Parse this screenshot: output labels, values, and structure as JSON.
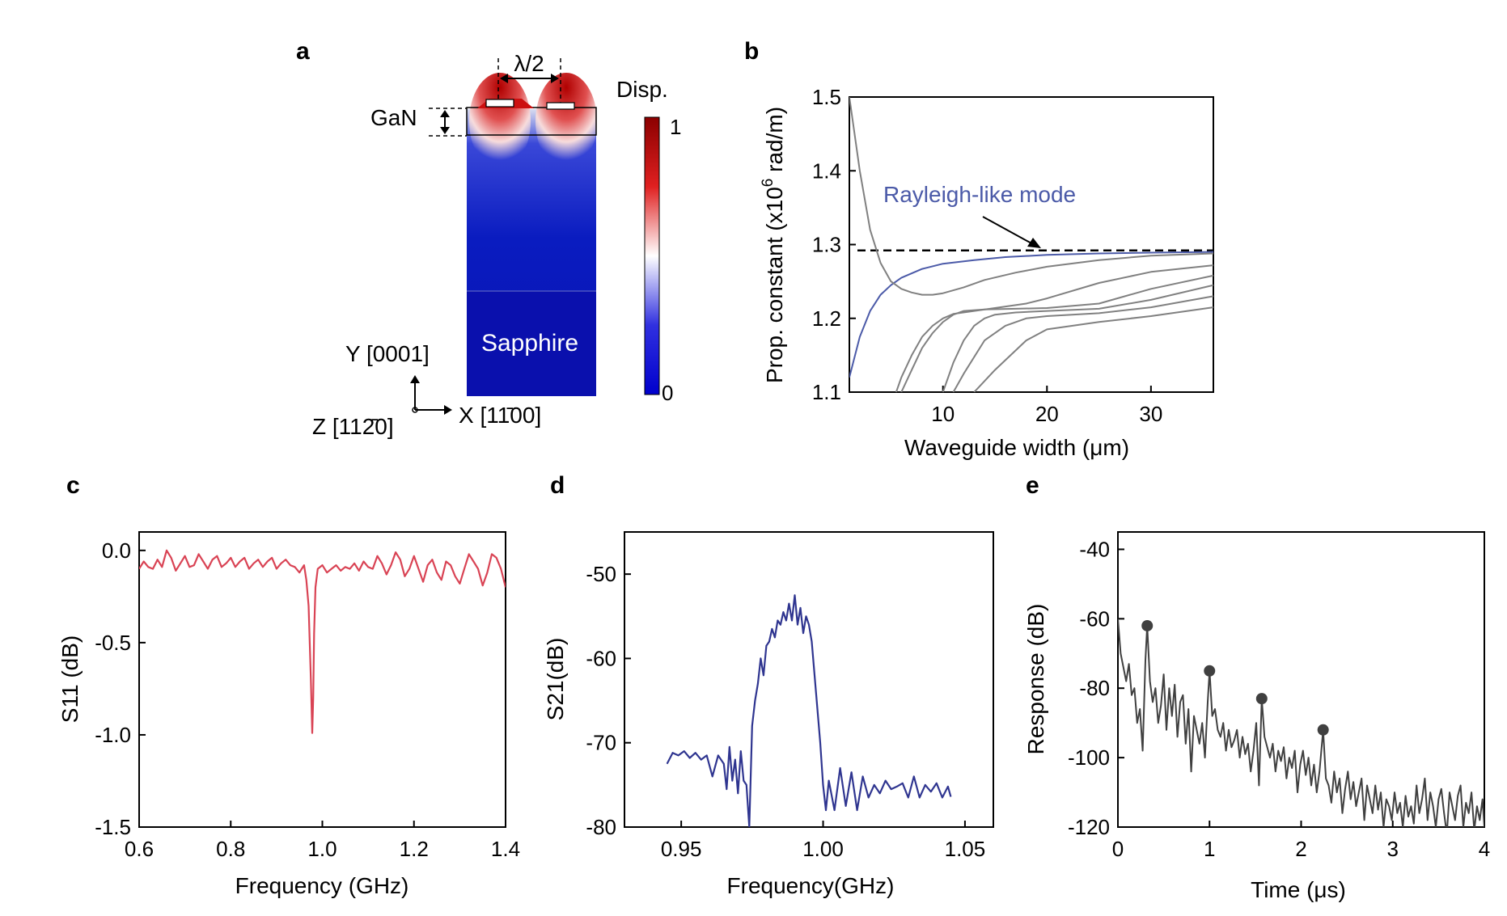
{
  "panels": {
    "a": "a",
    "b": "b",
    "c": "c",
    "d": "d",
    "e": "e"
  },
  "panel_a": {
    "lambda_label": "λ/2",
    "gan_label": "GaN",
    "sapphire_label": "Sapphire",
    "colorbar_title": "Disp.",
    "colorbar_max": "1",
    "colorbar_min": "0",
    "axis_y": "Y [0001]",
    "axis_x": "X [11̄00]",
    "axis_z": "Z [112̄0]",
    "colors": {
      "high": "#8b0000",
      "mid": "#ffffff",
      "low": "#0000cc"
    }
  },
  "chart_data": [
    {
      "id": "b",
      "type": "line",
      "xlabel": "Waveguide width (μm)",
      "ylabel": "Prop. constant (x10",
      "ylabel_exp": "6",
      "ylabel_tail": " rad/m)",
      "xlim": [
        1,
        36
      ],
      "ylim": [
        1.1,
        1.5
      ],
      "xticks": [
        10,
        20,
        30
      ],
      "yticks": [
        1.1,
        1.2,
        1.3,
        1.4,
        1.5
      ],
      "ytick_labels": [
        "1.1",
        "1.2",
        "1.3",
        "1.4",
        "1.5"
      ],
      "annotation": "Rayleigh-like mode",
      "reference_line": {
        "y": 1.292,
        "style": "dashed"
      },
      "series": [
        {
          "color": "#4b5aa8",
          "x": [
            1,
            2,
            3,
            4,
            5,
            6,
            8,
            10,
            13,
            16,
            20,
            25,
            30,
            36
          ],
          "y": [
            1.12,
            1.175,
            1.21,
            1.232,
            1.245,
            1.255,
            1.267,
            1.274,
            1.279,
            1.283,
            1.286,
            1.288,
            1.289,
            1.29
          ]
        },
        {
          "color": "#808080",
          "x": [
            1,
            2,
            3,
            4,
            5,
            6,
            7,
            8,
            9,
            10,
            12,
            14,
            17,
            20,
            25,
            30,
            36
          ],
          "y": [
            1.5,
            1.4,
            1.32,
            1.275,
            1.25,
            1.24,
            1.235,
            1.232,
            1.232,
            1.234,
            1.242,
            1.252,
            1.262,
            1.27,
            1.279,
            1.285,
            1.288
          ]
        },
        {
          "color": "#808080",
          "x": [
            5.5,
            6,
            7,
            8,
            9,
            10,
            11,
            13,
            15,
            18,
            20,
            25,
            30,
            36
          ],
          "y": [
            1.1,
            1.12,
            1.15,
            1.175,
            1.19,
            1.2,
            1.206,
            1.21,
            1.214,
            1.22,
            1.227,
            1.248,
            1.263,
            1.272
          ]
        },
        {
          "color": "#808080",
          "x": [
            6,
            7,
            8,
            9,
            10,
            11,
            12,
            14,
            17,
            20,
            25,
            30,
            36
          ],
          "y": [
            1.1,
            1.13,
            1.16,
            1.18,
            1.195,
            1.205,
            1.21,
            1.212,
            1.213,
            1.214,
            1.22,
            1.24,
            1.258
          ]
        },
        {
          "color": "#808080",
          "x": [
            10,
            11,
            12,
            13,
            14,
            15,
            17,
            20,
            25,
            30,
            36
          ],
          "y": [
            1.1,
            1.14,
            1.17,
            1.19,
            1.2,
            1.205,
            1.208,
            1.21,
            1.213,
            1.225,
            1.245
          ]
        },
        {
          "color": "#808080",
          "x": [
            11,
            12,
            14,
            16,
            18,
            20,
            25,
            30,
            36
          ],
          "y": [
            1.1,
            1.125,
            1.17,
            1.19,
            1.2,
            1.203,
            1.207,
            1.215,
            1.23
          ]
        },
        {
          "color": "#808080",
          "x": [
            13,
            15,
            18,
            20,
            25,
            30,
            36
          ],
          "y": [
            1.1,
            1.13,
            1.17,
            1.185,
            1.195,
            1.203,
            1.215
          ]
        }
      ]
    },
    {
      "id": "c",
      "type": "line",
      "xlabel": "Frequency (GHz)",
      "ylabel": "S11 (dB)",
      "xlim": [
        0.6,
        1.4
      ],
      "ylim": [
        -1.5,
        0.1
      ],
      "xticks": [
        0.6,
        0.8,
        1.0,
        1.2,
        1.4
      ],
      "xtick_labels": [
        "0.6",
        "0.8",
        "1.0",
        "1.2",
        "1.4"
      ],
      "yticks": [
        0.0,
        -0.5,
        -1.0,
        -1.5
      ],
      "ytick_labels": [
        "0.0",
        "-0.5",
        "-1.0",
        "-1.5"
      ],
      "series": [
        {
          "color": "#d94354",
          "x": [
            0.6,
            0.61,
            0.62,
            0.63,
            0.64,
            0.65,
            0.66,
            0.67,
            0.68,
            0.69,
            0.7,
            0.71,
            0.72,
            0.73,
            0.74,
            0.75,
            0.76,
            0.77,
            0.78,
            0.79,
            0.8,
            0.81,
            0.82,
            0.83,
            0.84,
            0.85,
            0.86,
            0.87,
            0.88,
            0.89,
            0.9,
            0.91,
            0.92,
            0.93,
            0.94,
            0.95,
            0.955,
            0.96,
            0.965,
            0.97,
            0.975,
            0.978,
            0.98,
            0.982,
            0.985,
            0.99,
            1.0,
            1.01,
            1.02,
            1.03,
            1.04,
            1.05,
            1.06,
            1.07,
            1.08,
            1.09,
            1.1,
            1.11,
            1.12,
            1.13,
            1.14,
            1.15,
            1.16,
            1.17,
            1.18,
            1.19,
            1.2,
            1.21,
            1.22,
            1.23,
            1.24,
            1.25,
            1.26,
            1.27,
            1.28,
            1.29,
            1.3,
            1.31,
            1.32,
            1.33,
            1.34,
            1.35,
            1.36,
            1.37,
            1.38,
            1.39,
            1.4
          ],
          "y": [
            -0.1,
            -0.06,
            -0.09,
            -0.1,
            -0.05,
            -0.09,
            0.0,
            -0.04,
            -0.11,
            -0.07,
            -0.03,
            -0.09,
            -0.08,
            -0.02,
            -0.06,
            -0.1,
            -0.05,
            -0.03,
            -0.09,
            -0.07,
            -0.04,
            -0.09,
            -0.06,
            -0.04,
            -0.1,
            -0.07,
            -0.05,
            -0.09,
            -0.06,
            -0.04,
            -0.1,
            -0.07,
            -0.05,
            -0.08,
            -0.09,
            -0.12,
            -0.1,
            -0.08,
            -0.16,
            -0.3,
            -0.7,
            -0.99,
            -0.8,
            -0.45,
            -0.2,
            -0.1,
            -0.08,
            -0.12,
            -0.1,
            -0.08,
            -0.11,
            -0.09,
            -0.1,
            -0.07,
            -0.11,
            -0.06,
            -0.09,
            -0.1,
            -0.03,
            -0.07,
            -0.13,
            -0.08,
            -0.01,
            -0.05,
            -0.14,
            -0.1,
            -0.03,
            -0.1,
            -0.17,
            -0.08,
            -0.05,
            -0.12,
            -0.16,
            -0.06,
            -0.08,
            -0.14,
            -0.18,
            -0.1,
            -0.02,
            -0.06,
            -0.1,
            -0.19,
            -0.12,
            -0.02,
            -0.04,
            -0.1,
            -0.2
          ]
        }
      ]
    },
    {
      "id": "d",
      "type": "line",
      "xlabel": "Frequency(GHz)",
      "ylabel": "S21(dB)",
      "xlim": [
        0.93,
        1.06
      ],
      "ylim": [
        -80,
        -45
      ],
      "xticks": [
        0.95,
        1.0,
        1.05
      ],
      "xtick_labels": [
        "0.95",
        "1.00",
        "1.05"
      ],
      "yticks": [
        -50,
        -60,
        -70,
        -80
      ],
      "ytick_labels": [
        "-50",
        "-60",
        "-70",
        "-80"
      ],
      "series": [
        {
          "color": "#2f3590",
          "x": [
            0.945,
            0.947,
            0.949,
            0.951,
            0.953,
            0.955,
            0.957,
            0.959,
            0.961,
            0.963,
            0.965,
            0.966,
            0.967,
            0.968,
            0.969,
            0.97,
            0.971,
            0.972,
            0.973,
            0.974,
            0.975,
            0.976,
            0.977,
            0.978,
            0.979,
            0.98,
            0.981,
            0.982,
            0.983,
            0.984,
            0.985,
            0.986,
            0.987,
            0.988,
            0.989,
            0.99,
            0.991,
            0.992,
            0.993,
            0.994,
            0.995,
            0.996,
            0.997,
            0.998,
            0.999,
            1.0,
            1.001,
            1.002,
            1.004,
            1.006,
            1.008,
            1.01,
            1.012,
            1.014,
            1.016,
            1.018,
            1.02,
            1.022,
            1.024,
            1.026,
            1.028,
            1.03,
            1.032,
            1.034,
            1.036,
            1.038,
            1.04,
            1.042,
            1.044,
            1.045
          ],
          "y": [
            -72.5,
            -71.2,
            -71.5,
            -71.0,
            -71.8,
            -71.2,
            -72.0,
            -71.5,
            -74.0,
            -71.5,
            -72.5,
            -75.5,
            -70.5,
            -74.5,
            -72.0,
            -76.0,
            -71.0,
            -74.5,
            -75.0,
            -80.0,
            -68.0,
            -65.0,
            -63.0,
            -60.0,
            -62.0,
            -58.5,
            -58.0,
            -56.5,
            -57.5,
            -55.5,
            -56.0,
            -54.5,
            -55.5,
            -53.5,
            -55.5,
            -52.5,
            -56.0,
            -54.0,
            -57.0,
            -55.0,
            -56.0,
            -58.0,
            -62.0,
            -66.0,
            -70.0,
            -75.0,
            -78.0,
            -74.5,
            -78.0,
            -73.0,
            -77.5,
            -73.5,
            -78.0,
            -74.0,
            -76.5,
            -75.0,
            -76.0,
            -74.5,
            -75.5,
            -75.2,
            -74.8,
            -76.5,
            -74.0,
            -76.5,
            -75.0,
            -75.8,
            -74.8,
            -76.5,
            -75.2,
            -76.4
          ]
        }
      ]
    },
    {
      "id": "e",
      "type": "line",
      "xlabel": "Time (μs)",
      "ylabel": "Response (dB)",
      "xlim": [
        0,
        4
      ],
      "ylim": [
        -120,
        -35
      ],
      "xticks": [
        0,
        1,
        2,
        3,
        4
      ],
      "xtick_labels": [
        "0",
        "1",
        "2",
        "3",
        "4"
      ],
      "yticks": [
        -40,
        -60,
        -80,
        -100,
        -120
      ],
      "ytick_labels": [
        "-40",
        "-60",
        "-80",
        "-100",
        "-120"
      ],
      "markers": {
        "x": [
          0.32,
          1.0,
          1.57,
          2.24
        ],
        "y": [
          -62,
          -75,
          -83,
          -92
        ]
      },
      "series": [
        {
          "color": "#404040",
          "x": [
            0,
            0.03,
            0.06,
            0.09,
            0.12,
            0.15,
            0.18,
            0.21,
            0.24,
            0.27,
            0.3,
            0.32,
            0.35,
            0.38,
            0.41,
            0.44,
            0.47,
            0.5,
            0.53,
            0.56,
            0.59,
            0.62,
            0.65,
            0.68,
            0.71,
            0.74,
            0.77,
            0.8,
            0.83,
            0.86,
            0.89,
            0.92,
            0.95,
            0.98,
            1.0,
            1.03,
            1.06,
            1.09,
            1.12,
            1.15,
            1.18,
            1.21,
            1.24,
            1.27,
            1.3,
            1.33,
            1.36,
            1.39,
            1.42,
            1.45,
            1.48,
            1.51,
            1.54,
            1.57,
            1.6,
            1.63,
            1.66,
            1.69,
            1.72,
            1.75,
            1.78,
            1.81,
            1.84,
            1.87,
            1.9,
            1.93,
            1.96,
            1.99,
            2.02,
            2.05,
            2.08,
            2.11,
            2.14,
            2.17,
            2.2,
            2.24,
            2.27,
            2.3,
            2.33,
            2.36,
            2.39,
            2.42,
            2.45,
            2.48,
            2.51,
            2.54,
            2.57,
            2.6,
            2.63,
            2.66,
            2.69,
            2.72,
            2.75,
            2.78,
            2.81,
            2.84,
            2.87,
            2.9,
            2.93,
            2.96,
            2.99,
            3.02,
            3.05,
            3.08,
            3.11,
            3.14,
            3.17,
            3.2,
            3.23,
            3.26,
            3.29,
            3.32,
            3.35,
            3.38,
            3.41,
            3.44,
            3.47,
            3.5,
            3.53,
            3.56,
            3.59,
            3.62,
            3.65,
            3.68,
            3.71,
            3.74,
            3.77,
            3.8,
            3.83,
            3.86,
            3.89,
            3.92,
            3.95,
            3.98,
            4.0
          ],
          "y": [
            -60,
            -70,
            -74,
            -78,
            -73,
            -82,
            -80,
            -90,
            -86,
            -98,
            -72,
            -62,
            -78,
            -84,
            -80,
            -90,
            -85,
            -76,
            -92,
            -80,
            -88,
            -79,
            -94,
            -84,
            -82,
            -96,
            -86,
            -104,
            -88,
            -92,
            -96,
            -90,
            -100,
            -84,
            -75,
            -88,
            -86,
            -92,
            -94,
            -90,
            -98,
            -92,
            -97,
            -95,
            -92,
            -100,
            -94,
            -99,
            -96,
            -104,
            -98,
            -90,
            -108,
            -83,
            -94,
            -97,
            -100,
            -96,
            -104,
            -98,
            -101,
            -97,
            -106,
            -100,
            -103,
            -98,
            -110,
            -102,
            -98,
            -105,
            -100,
            -108,
            -102,
            -110,
            -104,
            -92,
            -106,
            -108,
            -113,
            -104,
            -110,
            -106,
            -116,
            -109,
            -104,
            -112,
            -107,
            -114,
            -110,
            -106,
            -118,
            -108,
            -112,
            -116,
            -108,
            -115,
            -110,
            -120,
            -112,
            -114,
            -118,
            -110,
            -116,
            -113,
            -120,
            -111,
            -117,
            -114,
            -119,
            -108,
            -116,
            -112,
            -106,
            -118,
            -110,
            -114,
            -120,
            -112,
            -109,
            -116,
            -122,
            -110,
            -114,
            -118,
            -111,
            -108,
            -120,
            -113,
            -116,
            -110,
            -121,
            -114,
            -118,
            -112,
            -120
          ]
        }
      ]
    }
  ]
}
